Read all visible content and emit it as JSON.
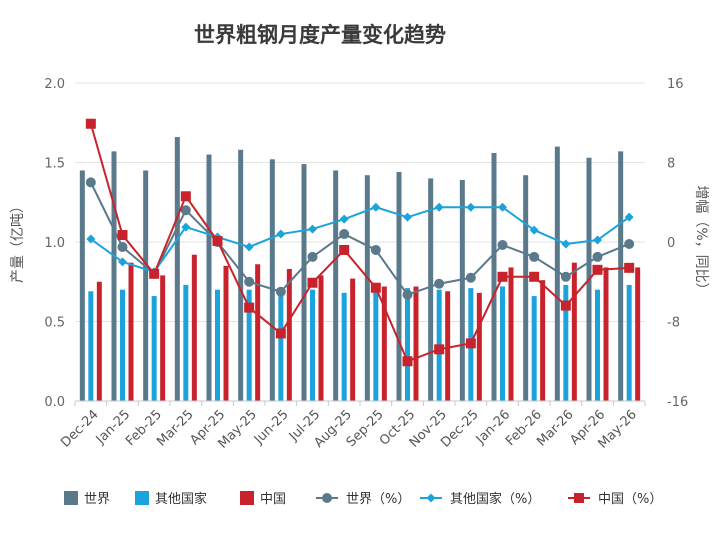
{
  "chart_data": {
    "type": "bar",
    "title": "世界粗钢月度产量变化趋势",
    "ylabel": "产量（亿吨）",
    "y2label": "增幅（%，同比）",
    "ylim": [
      0,
      2.0
    ],
    "y2lim": [
      -16,
      16
    ],
    "yticks": [
      "0.0",
      "0.5",
      "1.0",
      "1.5",
      "2.0"
    ],
    "y2ticks": [
      "-16",
      "-8",
      "0",
      "8",
      "16"
    ],
    "categories": [
      "Dec-24",
      "Jan-25",
      "Feb-25",
      "Mar-25",
      "Apr-25",
      "May-25",
      "Jun-25",
      "Jul-25",
      "Aug-25",
      "Sep-25",
      "Oct-25",
      "Nov-25",
      "Dec-25",
      "Jan-26",
      "Feb-26",
      "Mar-26",
      "Apr-26",
      "May-26"
    ],
    "series": [
      {
        "name": "世界",
        "kind": "bar",
        "axis": "left",
        "color": "#5a7a8c",
        "values": [
          1.45,
          1.57,
          1.45,
          1.66,
          1.55,
          1.58,
          1.52,
          1.49,
          1.45,
          1.42,
          1.44,
          1.4,
          1.39,
          1.56,
          1.42,
          1.6,
          1.53,
          1.57
        ]
      },
      {
        "name": "其他国家",
        "kind": "bar",
        "axis": "left",
        "color": "#1ca3dc",
        "values": [
          0.69,
          0.7,
          0.66,
          0.73,
          0.7,
          0.7,
          0.7,
          0.7,
          0.68,
          0.7,
          0.71,
          0.7,
          0.71,
          0.72,
          0.66,
          0.73,
          0.7,
          0.73
        ]
      },
      {
        "name": "中国",
        "kind": "bar",
        "axis": "left",
        "color": "#c8232c",
        "values": [
          0.75,
          0.87,
          0.79,
          0.92,
          0.85,
          0.86,
          0.83,
          0.79,
          0.77,
          0.72,
          0.72,
          0.69,
          0.68,
          0.84,
          0.76,
          0.87,
          0.84,
          0.84
        ]
      },
      {
        "name": "世界（%）",
        "kind": "line",
        "axis": "right",
        "color": "#5a7a8c",
        "marker": "circle",
        "values": [
          6.0,
          -0.5,
          -3.2,
          3.2,
          0.0,
          -4.0,
          -5.0,
          -1.5,
          0.8,
          -0.8,
          -5.3,
          -4.2,
          -3.6,
          -0.3,
          -1.5,
          -3.5,
          -1.5,
          -0.2
        ]
      },
      {
        "name": "其他国家（%）",
        "kind": "line",
        "axis": "right",
        "color": "#1ca3dc",
        "marker": "diamond",
        "values": [
          0.3,
          -2.0,
          -3.0,
          1.5,
          0.5,
          -0.5,
          0.8,
          1.3,
          2.3,
          3.5,
          2.5,
          3.5,
          3.5,
          3.5,
          1.2,
          -0.2,
          0.2,
          2.5
        ]
      },
      {
        "name": "中国（%）",
        "kind": "line",
        "axis": "right",
        "color": "#c8232c",
        "marker": "square",
        "values": [
          11.9,
          0.7,
          -3.2,
          4.6,
          0.1,
          -6.6,
          -9.2,
          -4.1,
          -0.8,
          -4.6,
          -12.0,
          -10.8,
          -10.2,
          -3.5,
          -3.5,
          -6.4,
          -2.8,
          -2.6
        ]
      }
    ],
    "legend_position": "bottom",
    "grid": true
  }
}
